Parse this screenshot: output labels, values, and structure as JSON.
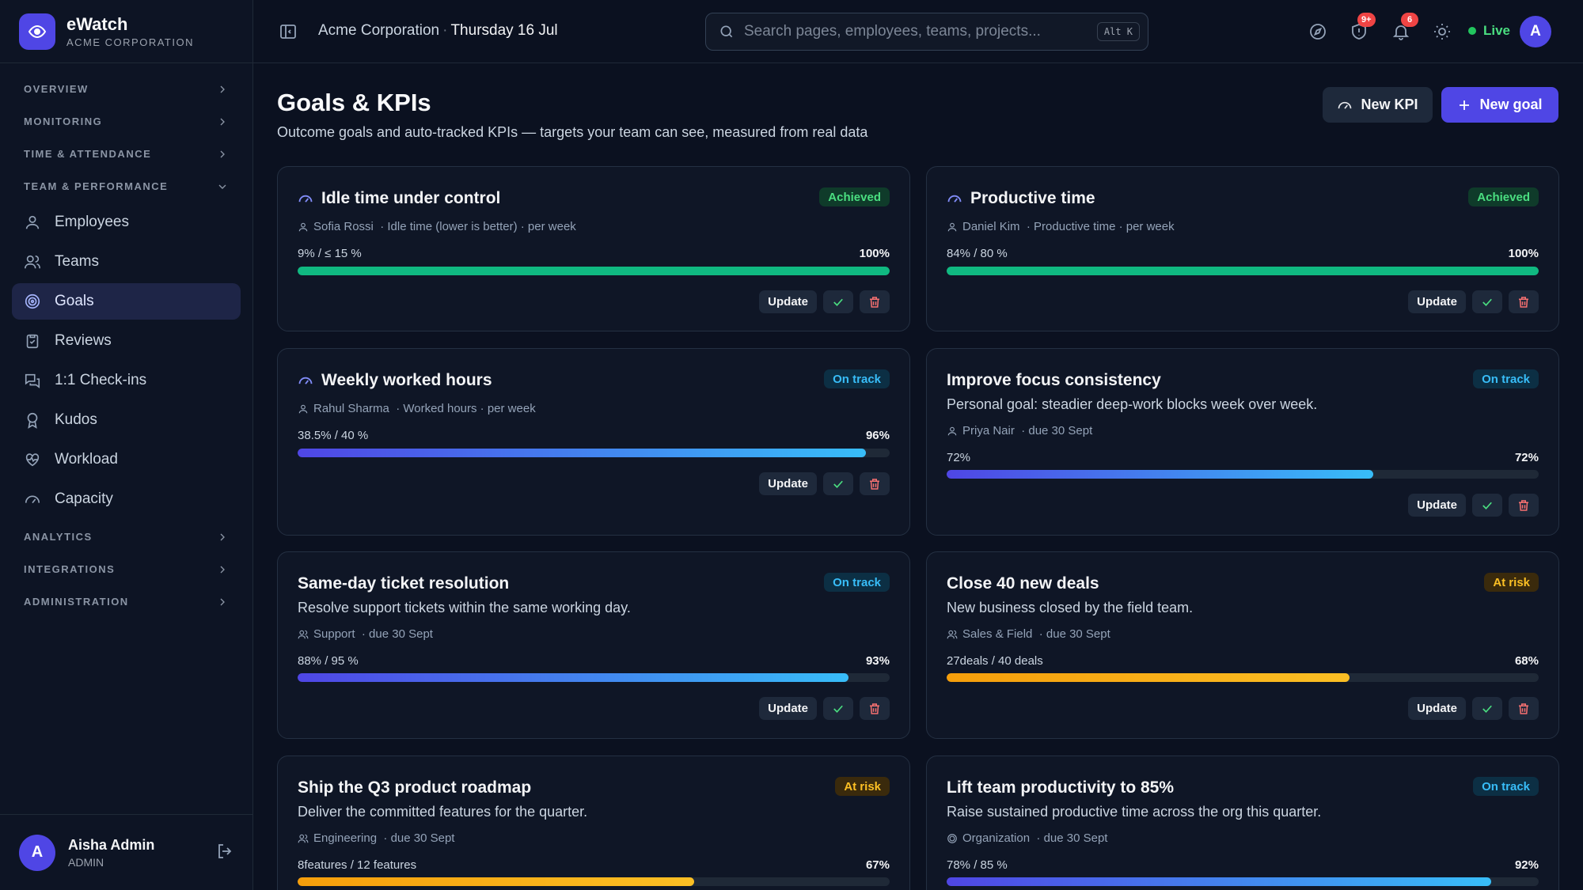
{
  "brand": {
    "name": "eWatch",
    "subtitle": "ACME CORPORATION"
  },
  "sidebar": {
    "sections_top": [
      {
        "label": "OVERVIEW"
      },
      {
        "label": "MONITORING"
      },
      {
        "label": "TIME & ATTENDANCE"
      },
      {
        "label": "TEAM & PERFORMANCE"
      }
    ],
    "items": [
      {
        "label": "Employees",
        "icon": "user-icon"
      },
      {
        "label": "Teams",
        "icon": "users-icon"
      },
      {
        "label": "Goals",
        "icon": "target-icon",
        "active": true
      },
      {
        "label": "Reviews",
        "icon": "clipboard-check-icon"
      },
      {
        "label": "1:1 Check-ins",
        "icon": "chat-icon"
      },
      {
        "label": "Kudos",
        "icon": "award-icon"
      },
      {
        "label": "Workload",
        "icon": "heart-pulse-icon"
      },
      {
        "label": "Capacity",
        "icon": "gauge-icon"
      }
    ],
    "sections_bottom": [
      {
        "label": "ANALYTICS"
      },
      {
        "label": "INTEGRATIONS"
      },
      {
        "label": "ADMINISTRATION"
      }
    ],
    "user": {
      "initial": "A",
      "name": "Aisha Admin",
      "role": "ADMIN"
    }
  },
  "header": {
    "org": "Acme Corporation",
    "separator": "·",
    "date": "Thursday 16 Jul",
    "search_placeholder": "Search pages, employees, teams, projects...",
    "shortcut": "Alt K",
    "alerts_badge": "9+",
    "notifications_badge": "6",
    "live_label": "Live",
    "avatar_initial": "A"
  },
  "page": {
    "title": "Goals & KPIs",
    "subtitle": "Outcome goals and auto-tracked KPIs — targets your team can see, measured from real data",
    "new_kpi_label": "New KPI",
    "new_goal_label": "New goal"
  },
  "actions": {
    "update_label": "Update"
  },
  "goals": [
    {
      "title": "Idle time under control",
      "status": "Achieved",
      "owner": "Sofia Rossi",
      "meta_rest": "· Idle time (lower is better) · per week",
      "progress_label": "9% / ≤ 15 %",
      "percent_label": "100%",
      "progress": 1.0,
      "kpi": true
    },
    {
      "title": "Productive time",
      "status": "Achieved",
      "owner": "Daniel Kim",
      "meta_rest": "· Productive time · per week",
      "progress_label": "84% / 80 %",
      "percent_label": "100%",
      "progress": 1.0,
      "kpi": true
    },
    {
      "title": "Weekly worked hours",
      "status": "On track",
      "owner": "Rahul Sharma",
      "meta_rest": "· Worked hours · per week",
      "progress_label": "38.5% / 40 %",
      "percent_label": "96%",
      "progress": 0.96,
      "kpi": true
    },
    {
      "title": "Improve focus consistency",
      "status": "On track",
      "description": "Personal goal: steadier deep-work blocks week over week.",
      "owner": "Priya Nair",
      "meta_rest": "· due 30 Sept",
      "progress_label": "72%",
      "percent_label": "72%",
      "progress": 0.72
    },
    {
      "title": "Same-day ticket resolution",
      "status": "On track",
      "description": "Resolve support tickets within the same working day.",
      "owner": "Support",
      "meta_rest": "· due 30 Sept",
      "progress_label": "88% / 95 %",
      "percent_label": "93%",
      "progress": 0.93
    },
    {
      "title": "Close 40 new deals",
      "status": "At risk",
      "description": "New business closed by the field team.",
      "owner": "Sales & Field",
      "meta_rest": "· due 30 Sept",
      "progress_label": "27deals / 40 deals",
      "percent_label": "68%",
      "progress": 0.68
    },
    {
      "title": "Ship the Q3 product roadmap",
      "status": "At risk",
      "description": "Deliver the committed features for the quarter.",
      "owner": "Engineering",
      "meta_rest": "· due 30 Sept",
      "progress_label": "8features / 12 features",
      "percent_label": "67%",
      "progress": 0.67
    },
    {
      "title": "Lift team productivity to 85%",
      "status": "On track",
      "description": "Raise sustained productive time across the org this quarter.",
      "owner": "Organization",
      "meta_rest": "· due 30 Sept",
      "progress_label": "78% / 85 %",
      "percent_label": "92%",
      "progress": 0.92
    }
  ]
}
